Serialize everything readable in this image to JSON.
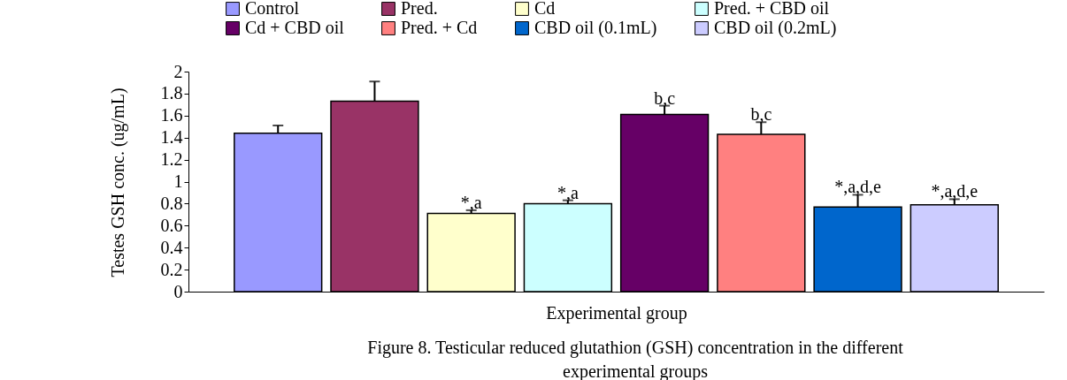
{
  "chart_data": {
    "type": "bar",
    "xlabel": "Experimental group",
    "ylabel": "Testes GSH conc. (ug/mL)",
    "categories": [
      null
    ],
    "series": [
      {
        "name": "Control",
        "color": "#9999ff",
        "values": [
          1.44
        ],
        "errors": [
          0.07
        ]
      },
      {
        "name": "Pred.",
        "color": "#993366",
        "values": [
          1.73
        ],
        "errors": [
          0.18
        ]
      },
      {
        "name": "Cd",
        "color": "#ffffcc",
        "values": [
          0.71
        ],
        "errors": [
          0.03
        ],
        "value_labels": [
          "*,a"
        ]
      },
      {
        "name": "Pred. + CBD oil",
        "color": "#ccffff",
        "values": [
          0.8
        ],
        "errors": [
          0.03
        ],
        "value_labels": [
          "*,a"
        ]
      },
      {
        "name": "Cd + CBD oil",
        "color": "#660066",
        "values": [
          1.61
        ],
        "errors": [
          0.08
        ],
        "value_labels": [
          "b,c"
        ]
      },
      {
        "name": "Pred. + Cd",
        "color": "#ff8080",
        "values": [
          1.43
        ],
        "errors": [
          0.11
        ],
        "value_labels": [
          "b,c"
        ]
      },
      {
        "name": "CBD oil (0.1mL)",
        "color": "#0066cc",
        "values": [
          0.77
        ],
        "errors": [
          0.11
        ],
        "value_labels": [
          "*,a,d,e"
        ]
      },
      {
        "name": "CBD oil (0.2mL)",
        "color": "#ccccff",
        "values": [
          0.79
        ],
        "errors": [
          0.05
        ],
        "value_labels": [
          "*,a,d,e"
        ]
      }
    ],
    "ylim": [
      0,
      2
    ],
    "yticks": [
      0,
      0.2,
      0.4,
      0.6,
      0.8,
      1,
      1.2,
      1.4,
      1.6,
      1.8,
      2
    ],
    "grid": false,
    "legend": "top",
    "annotations": [
      "Figure 8. Testicular reduced glutathion (GSH) concentration in the different experimental groups"
    ]
  }
}
